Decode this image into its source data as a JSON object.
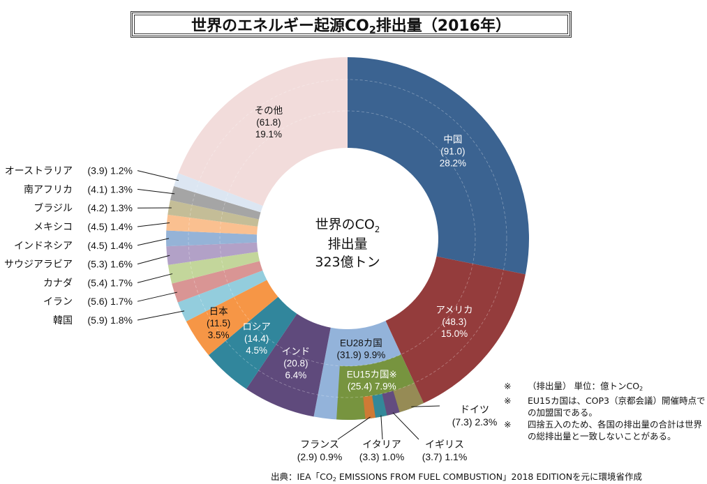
{
  "title": {
    "prefix": "世界のエネルギー起源CO",
    "sub": "2",
    "suffix": "排出量（2016年）"
  },
  "center": {
    "line1_prefix": "世界のCO",
    "line1_sub": "2",
    "line2": "排出量",
    "line3": "323億トン"
  },
  "notes": [
    {
      "mark": "※",
      "text": "（排出量） 単位：億トンCO",
      "sub": "2"
    },
    {
      "mark": "※",
      "text": "EU15カ国は、COP3（京都会議）開催時点での加盟国である。",
      "sub": ""
    },
    {
      "mark": "※",
      "text": "四捨五入のため、各国の排出量の合計は世界の総排出量と一致しないことがある。",
      "sub": ""
    }
  ],
  "source": {
    "prefix": "出典：IEA「CO",
    "sub": "2",
    "suffix": " EMISSIONS FROM FUEL COMBUSTION」2018 EDITIONを元に環境省作成"
  },
  "chart_data": {
    "type": "pie",
    "title": "世界のエネルギー起源CO2排出量（2016年）",
    "unit": "億トンCO2",
    "total": 323,
    "slices": [
      {
        "name": "中国",
        "value": 91.0,
        "percent": "28.2%",
        "color": "#3b6391",
        "label_color": "#ffffff",
        "label_pos": "inside"
      },
      {
        "name": "アメリカ",
        "value": 48.3,
        "percent": "15.0%",
        "color": "#943c3c",
        "label_color": "#ffffff",
        "label_pos": "inside"
      },
      {
        "name": "EU28カ国",
        "value": 31.9,
        "percent": "9.9%",
        "color": "#93b3da",
        "label_color": "#111111",
        "label_pos": "inside",
        "children": [
          {
            "name": "EU15カ国※",
            "value": 25.4,
            "percent": "7.9%",
            "color": "#77943f",
            "label_color": "#ffffff",
            "children": [
              {
                "name": "ドイツ",
                "value": 7.3,
                "percent": "2.3%",
                "color": "#968b55"
              },
              {
                "name": "イギリス",
                "value": 3.7,
                "percent": "1.1%",
                "color": "#634c7f"
              },
              {
                "name": "イタリア",
                "value": 3.3,
                "percent": "1.0%",
                "color": "#338899"
              },
              {
                "name": "フランス",
                "value": 2.9,
                "percent": "0.9%",
                "color": "#cf7a35"
              }
            ]
          }
        ]
      },
      {
        "name": "インド",
        "value": 20.8,
        "percent": "6.4%",
        "color": "#5f4a7c",
        "label_color": "#ffffff",
        "label_pos": "inside"
      },
      {
        "name": "ロシア",
        "value": 14.4,
        "percent": "4.5%",
        "color": "#31869c",
        "label_color": "#ffffff",
        "label_pos": "inside"
      },
      {
        "name": "日本",
        "value": 11.5,
        "percent": "3.5%",
        "color": "#f69646",
        "label_color": "#111111",
        "label_pos": "inside"
      },
      {
        "name": "韓国",
        "value": 5.9,
        "percent": "1.8%",
        "color": "#93cddd",
        "label_pos": "outside"
      },
      {
        "name": "イラン",
        "value": 5.6,
        "percent": "1.7%",
        "color": "#d99594",
        "label_pos": "outside"
      },
      {
        "name": "カナダ",
        "value": 5.4,
        "percent": "1.7%",
        "color": "#c3d69b",
        "label_pos": "outside"
      },
      {
        "name": "サウジアラビア",
        "value": 5.3,
        "percent": "1.6%",
        "color": "#b2a1c7",
        "label_pos": "outside"
      },
      {
        "name": "インドネシア",
        "value": 4.5,
        "percent": "1.4%",
        "color": "#95b3d7",
        "label_pos": "outside"
      },
      {
        "name": "メキシコ",
        "value": 4.5,
        "percent": "1.4%",
        "color": "#fac090",
        "label_pos": "outside"
      },
      {
        "name": "ブラジル",
        "value": 4.2,
        "percent": "1.3%",
        "color": "#c4bd97",
        "label_pos": "outside"
      },
      {
        "name": "南アフリカ",
        "value": 4.1,
        "percent": "1.3%",
        "color": "#a5a5a5",
        "label_pos": "outside"
      },
      {
        "name": "オーストラリア",
        "value": 3.9,
        "percent": "1.2%",
        "color": "#dce6f2",
        "label_pos": "outside"
      },
      {
        "name": "その他",
        "value": 61.8,
        "percent": "19.1%",
        "color": "#f2dcdb",
        "label_color": "#111111",
        "label_pos": "inside"
      }
    ]
  }
}
